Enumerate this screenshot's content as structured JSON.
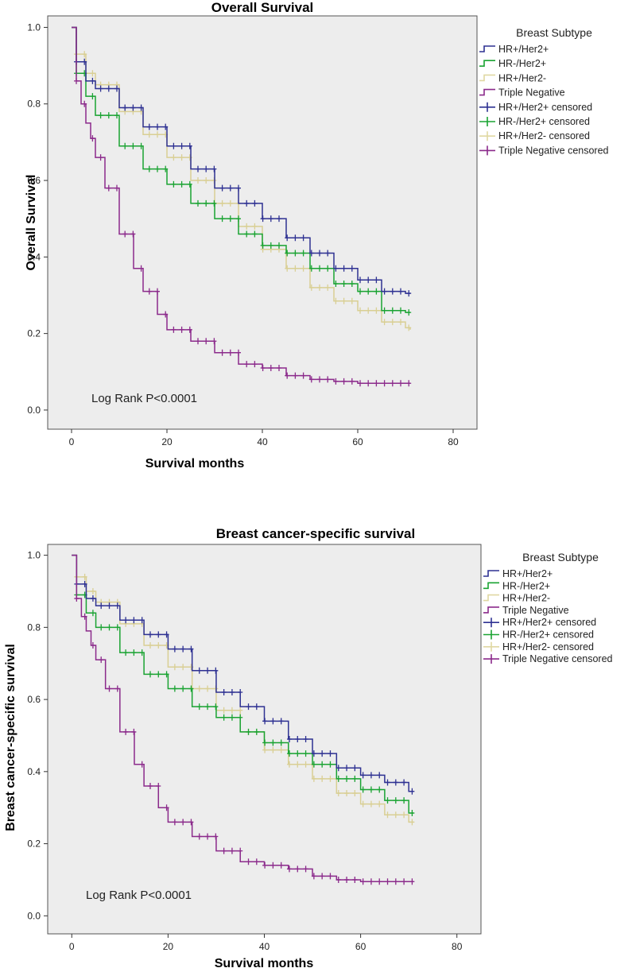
{
  "chart_data": [
    {
      "type": "line",
      "style": "kaplan-meier-step",
      "title": "Overall Survival",
      "xlabel": "Survival months",
      "ylabel": "Overall Survival",
      "xlim": [
        -5,
        85
      ],
      "ylim": [
        -0.05,
        1.03
      ],
      "xticks": [
        0,
        20,
        40,
        60,
        80
      ],
      "yticks": [
        0.0,
        0.2,
        0.4,
        0.6,
        0.8,
        1.0
      ],
      "ytick_labels": [
        "0.0",
        "0.2",
        "0.4",
        "0.6",
        "0.8",
        "1.0"
      ],
      "xtick_labels": [
        "0",
        "20",
        "40",
        "60",
        "80"
      ],
      "grid": false,
      "background": "#ededed",
      "annotation": "Log Rank P<0.0001",
      "legend": {
        "title": "Breast Subtype",
        "position": "right",
        "entries": [
          {
            "label": "HR+/Her2+",
            "marker": "step",
            "color": "#2e3192"
          },
          {
            "label": "HR-/Her2+",
            "marker": "step",
            "color": "#1aa332"
          },
          {
            "label": "HR+/Her2-",
            "marker": "step",
            "color": "#e0d8a2"
          },
          {
            "label": "Triple Negative",
            "marker": "step",
            "color": "#8b2a8b"
          },
          {
            "label": "HR+/Her2+  censored",
            "marker": "plus",
            "color": "#2e3192"
          },
          {
            "label": "HR-/Her2+ censored",
            "marker": "plus",
            "color": "#1aa332"
          },
          {
            "label": "HR+/Her2- censored",
            "marker": "plus",
            "color": "#e0d8a2"
          },
          {
            "label": "Triple Negative censored",
            "marker": "plus",
            "color": "#8b2a8b"
          }
        ]
      },
      "series": [
        {
          "name": "HR+/Her2-",
          "color": "#d9cf94",
          "x": [
            0,
            1,
            3,
            5,
            10,
            15,
            20,
            25,
            30,
            35,
            40,
            45,
            50,
            55,
            60,
            65,
            70,
            71
          ],
          "y": [
            1.0,
            0.93,
            0.88,
            0.85,
            0.78,
            0.72,
            0.66,
            0.6,
            0.54,
            0.48,
            0.42,
            0.37,
            0.32,
            0.285,
            0.26,
            0.23,
            0.215,
            0.21
          ]
        },
        {
          "name": "HR-/Her2+",
          "color": "#1aa332",
          "x": [
            0,
            1,
            3,
            5,
            10,
            15,
            20,
            25,
            30,
            35,
            40,
            45,
            50,
            55,
            60,
            65,
            70,
            71
          ],
          "y": [
            1.0,
            0.88,
            0.82,
            0.77,
            0.69,
            0.63,
            0.59,
            0.54,
            0.5,
            0.46,
            0.43,
            0.41,
            0.37,
            0.33,
            0.31,
            0.26,
            0.255,
            0.255
          ]
        },
        {
          "name": "HR+/Her2+",
          "color": "#2e3192",
          "x": [
            0,
            1,
            3,
            5,
            10,
            15,
            20,
            25,
            30,
            35,
            40,
            45,
            50,
            55,
            60,
            65,
            70,
            71
          ],
          "y": [
            1.0,
            0.91,
            0.86,
            0.84,
            0.79,
            0.74,
            0.69,
            0.63,
            0.58,
            0.54,
            0.5,
            0.45,
            0.41,
            0.37,
            0.34,
            0.31,
            0.305,
            0.305
          ]
        },
        {
          "name": "Triple Negative",
          "color": "#8b2a8b",
          "x": [
            0,
            1,
            2,
            3,
            4,
            5,
            7,
            10,
            13,
            15,
            18,
            20,
            25,
            30,
            35,
            40,
            45,
            50,
            55,
            60,
            65,
            70,
            71
          ],
          "y": [
            1.0,
            0.86,
            0.8,
            0.75,
            0.71,
            0.66,
            0.58,
            0.46,
            0.37,
            0.31,
            0.25,
            0.21,
            0.18,
            0.15,
            0.12,
            0.11,
            0.09,
            0.08,
            0.075,
            0.07,
            0.07,
            0.07,
            0.07
          ]
        }
      ]
    },
    {
      "type": "line",
      "style": "kaplan-meier-step",
      "title": "Breast cancer-specific survival",
      "xlabel": "Survival months",
      "ylabel": "Breast cancer-specific survival",
      "xlim": [
        -5,
        85
      ],
      "ylim": [
        -0.05,
        1.03
      ],
      "xticks": [
        0,
        20,
        40,
        60,
        80
      ],
      "yticks": [
        0.0,
        0.2,
        0.4,
        0.6,
        0.8,
        1.0
      ],
      "ytick_labels": [
        "0.0",
        "0.2",
        "0.4",
        "0.6",
        "0.8",
        "1.0"
      ],
      "xtick_labels": [
        "0",
        "20",
        "40",
        "60",
        "80"
      ],
      "grid": false,
      "background": "#ededed",
      "annotation": "Log Rank P<0.0001",
      "legend": {
        "title": "Breast Subtype",
        "position": "right",
        "entries": [
          {
            "label": "HR+/Her2+",
            "marker": "step",
            "color": "#2e3192"
          },
          {
            "label": "HR-/Her2+",
            "marker": "step",
            "color": "#1aa332"
          },
          {
            "label": "HR+/Her2-",
            "marker": "step",
            "color": "#e0d8a2"
          },
          {
            "label": "Triple Negative",
            "marker": "step",
            "color": "#8b2a8b"
          },
          {
            "label": "HR+/Her2+ censored",
            "marker": "plus",
            "color": "#2e3192"
          },
          {
            "label": "HR-/Her2+ censored",
            "marker": "plus",
            "color": "#1aa332"
          },
          {
            "label": "HR+/Her2- censored",
            "marker": "plus",
            "color": "#e0d8a2"
          },
          {
            "label": "Triple Negative censored",
            "marker": "plus",
            "color": "#8b2a8b"
          }
        ]
      },
      "series": [
        {
          "name": "HR+/Her2-",
          "color": "#d9cf94",
          "x": [
            0,
            1,
            3,
            5,
            10,
            15,
            20,
            25,
            30,
            35,
            40,
            45,
            50,
            55,
            60,
            65,
            70,
            71
          ],
          "y": [
            1.0,
            0.94,
            0.9,
            0.87,
            0.81,
            0.75,
            0.69,
            0.63,
            0.57,
            0.51,
            0.46,
            0.42,
            0.38,
            0.34,
            0.31,
            0.28,
            0.26,
            0.26
          ]
        },
        {
          "name": "HR-/Her2+",
          "color": "#1aa332",
          "x": [
            0,
            1,
            3,
            5,
            10,
            15,
            20,
            25,
            30,
            35,
            40,
            45,
            50,
            55,
            60,
            65,
            70,
            71
          ],
          "y": [
            1.0,
            0.89,
            0.84,
            0.8,
            0.73,
            0.67,
            0.63,
            0.58,
            0.55,
            0.51,
            0.48,
            0.45,
            0.42,
            0.38,
            0.35,
            0.32,
            0.285,
            0.285
          ]
        },
        {
          "name": "HR+/Her2+",
          "color": "#2e3192",
          "x": [
            0,
            1,
            3,
            5,
            10,
            15,
            20,
            25,
            30,
            35,
            40,
            45,
            50,
            55,
            60,
            65,
            70,
            71
          ],
          "y": [
            1.0,
            0.92,
            0.88,
            0.86,
            0.82,
            0.78,
            0.74,
            0.68,
            0.62,
            0.58,
            0.54,
            0.49,
            0.45,
            0.41,
            0.39,
            0.37,
            0.345,
            0.345
          ]
        },
        {
          "name": "Triple Negative",
          "color": "#8b2a8b",
          "x": [
            0,
            1,
            2,
            3,
            4,
            5,
            7,
            10,
            13,
            15,
            18,
            20,
            25,
            30,
            35,
            40,
            45,
            50,
            55,
            60,
            65,
            70,
            71
          ],
          "y": [
            1.0,
            0.88,
            0.83,
            0.79,
            0.75,
            0.71,
            0.63,
            0.51,
            0.42,
            0.36,
            0.3,
            0.26,
            0.22,
            0.18,
            0.15,
            0.14,
            0.13,
            0.11,
            0.1,
            0.095,
            0.095,
            0.095,
            0.095
          ]
        }
      ]
    }
  ]
}
